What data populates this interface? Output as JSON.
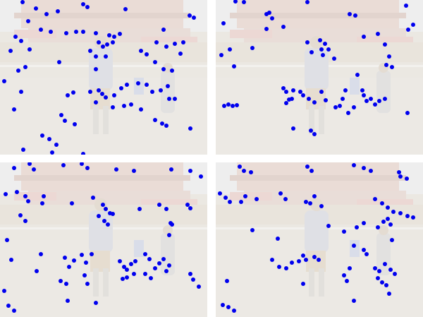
{
  "figure": {
    "background_color": "#ffffff",
    "point_color": "#0000ee",
    "photo_tint": "#ebe8e2",
    "panels": [
      {
        "id": "panel-top-left",
        "points": [
          [
            32,
            3
          ],
          [
            51,
            12
          ],
          [
            66,
            20
          ],
          [
            82,
            16
          ],
          [
            118,
            6
          ],
          [
            124,
            10
          ],
          [
            178,
            13
          ],
          [
            269,
            22
          ],
          [
            275,
            25
          ],
          [
            40,
            30
          ],
          [
            58,
            42
          ],
          [
            72,
            45
          ],
          [
            94,
            47
          ],
          [
            108,
            45
          ],
          [
            118,
            45
          ],
          [
            136,
            47
          ],
          [
            155,
            50
          ],
          [
            162,
            52
          ],
          [
            170,
            48
          ],
          [
            232,
            42
          ],
          [
            22,
            52
          ],
          [
            30,
            58
          ],
          [
            42,
            70
          ],
          [
            15,
            72
          ],
          [
            140,
            60
          ],
          [
            146,
            66
          ],
          [
            152,
            63
          ],
          [
            160,
            60
          ],
          [
            136,
            80
          ],
          [
            150,
            80
          ],
          [
            128,
            72
          ],
          [
            200,
            72
          ],
          [
            208,
            77
          ],
          [
            222,
            60
          ],
          [
            236,
            66
          ],
          [
            248,
            62
          ],
          [
            260,
            60
          ],
          [
            256,
            76
          ],
          [
            36,
            95
          ],
          [
            26,
            100
          ],
          [
            84,
            88
          ],
          [
            220,
            88
          ],
          [
            232,
            98
          ],
          [
            244,
            100
          ],
          [
            136,
            98
          ],
          [
            6,
            115
          ],
          [
            20,
            155
          ],
          [
            30,
            130
          ],
          [
            96,
            135
          ],
          [
            104,
            131
          ],
          [
            128,
            130
          ],
          [
            140,
            128
          ],
          [
            145,
            133
          ],
          [
            150,
            138
          ],
          [
            162,
            135
          ],
          [
            172,
            125
          ],
          [
            180,
            120
          ],
          [
            196,
            118
          ],
          [
            208,
            120
          ],
          [
            216,
            130
          ],
          [
            228,
            128
          ],
          [
            238,
            122
          ],
          [
            240,
            140
          ],
          [
            248,
            140
          ],
          [
            136,
            145
          ],
          [
            160,
            152
          ],
          [
            176,
            150
          ],
          [
            186,
            148
          ],
          [
            200,
            155
          ],
          [
            220,
            170
          ],
          [
            230,
            175
          ],
          [
            236,
            178
          ],
          [
            87,
            163
          ],
          [
            92,
            171
          ],
          [
            106,
            176
          ],
          [
            270,
            182
          ],
          [
            60,
            192
          ],
          [
            70,
            197
          ],
          [
            80,
            205
          ],
          [
            33,
            212
          ],
          [
            74,
            216
          ],
          [
            118,
            218
          ]
        ]
      },
      {
        "id": "panel-top-right",
        "points": [
          [
            28,
            2
          ],
          [
            40,
            3
          ],
          [
            130,
            3
          ],
          [
            190,
            20
          ],
          [
            198,
            22
          ],
          [
            270,
            8
          ],
          [
            273,
            42
          ],
          [
            280,
            35
          ],
          [
            72,
            20
          ],
          [
            76,
            18
          ],
          [
            80,
            26
          ],
          [
            11,
            33
          ],
          [
            72,
            41
          ],
          [
            96,
            38
          ],
          [
            130,
            60
          ],
          [
            136,
            74
          ],
          [
            148,
            57
          ],
          [
            150,
            70
          ],
          [
            155,
            62
          ],
          [
            160,
            70
          ],
          [
            152,
            78
          ],
          [
            168,
            83
          ],
          [
            210,
            52
          ],
          [
            230,
            48
          ],
          [
            240,
            63
          ],
          [
            246,
            80
          ],
          [
            250,
            95
          ],
          [
            242,
            92
          ],
          [
            52,
            68
          ],
          [
            20,
            70
          ],
          [
            8,
            78
          ],
          [
            26,
            94
          ],
          [
            96,
            125
          ],
          [
            100,
            130
          ],
          [
            110,
            128
          ],
          [
            120,
            130
          ],
          [
            124,
            135
          ],
          [
            132,
            140
          ],
          [
            140,
            145
          ],
          [
            150,
            130
          ],
          [
            170,
            152
          ],
          [
            176,
            150
          ],
          [
            188,
            160
          ],
          [
            196,
            152
          ],
          [
            201,
            106
          ],
          [
            208,
            128
          ],
          [
            210,
            135
          ],
          [
            214,
            143
          ],
          [
            220,
            140
          ],
          [
            226,
            148
          ],
          [
            232,
            143
          ],
          [
            240,
            140
          ],
          [
            184,
            128
          ],
          [
            180,
            140
          ],
          [
            12,
            150
          ],
          [
            18,
            148
          ],
          [
            24,
            150
          ],
          [
            30,
            149
          ],
          [
            100,
            146
          ],
          [
            104,
            141
          ],
          [
            108,
            140
          ],
          [
            135,
            185
          ],
          [
            140,
            190
          ],
          [
            110,
            182
          ],
          [
            156,
            142
          ],
          [
            272,
            160
          ]
        ]
      },
      {
        "id": "panel-bottom-left",
        "points": [
          [
            20,
            8
          ],
          [
            42,
            2
          ],
          [
            48,
            10
          ],
          [
            90,
            4
          ],
          [
            116,
            2
          ],
          [
            124,
            8
          ],
          [
            165,
            10
          ],
          [
            190,
            12
          ],
          [
            243,
            10
          ],
          [
            270,
            12
          ],
          [
            285,
            20
          ],
          [
            8,
            45
          ],
          [
            24,
            42
          ],
          [
            36,
            48
          ],
          [
            40,
            55
          ],
          [
            62,
            48
          ],
          [
            102,
            58
          ],
          [
            132,
            50
          ],
          [
            146,
            60
          ],
          [
            150,
            66
          ],
          [
            156,
            72
          ],
          [
            140,
            76
          ],
          [
            148,
            83
          ],
          [
            153,
            88
          ],
          [
            160,
            73
          ],
          [
            198,
            66
          ],
          [
            226,
            60
          ],
          [
            236,
            66
          ],
          [
            266,
            60
          ],
          [
            270,
            65
          ],
          [
            29,
            75
          ],
          [
            36,
            83
          ],
          [
            60,
            58
          ],
          [
            10,
            110
          ],
          [
            16,
            138
          ],
          [
            58,
            130
          ],
          [
            92,
            135
          ],
          [
            98,
            148
          ],
          [
            105,
            139
          ],
          [
            116,
            131
          ],
          [
            122,
            142
          ],
          [
            130,
            130
          ],
          [
            170,
            140
          ],
          [
            176,
            148
          ],
          [
            180,
            152
          ],
          [
            186,
            144
          ],
          [
            192,
            140
          ],
          [
            206,
            130
          ],
          [
            212,
            137
          ],
          [
            220,
            150
          ],
          [
            226,
            143
          ],
          [
            232,
            137
          ],
          [
            240,
            146
          ],
          [
            236,
            154
          ],
          [
            174,
            165
          ],
          [
            180,
            163
          ],
          [
            190,
            158
          ],
          [
            206,
            158
          ],
          [
            214,
            164
          ],
          [
            120,
            160
          ],
          [
            124,
            172
          ],
          [
            86,
            168
          ],
          [
            94,
            172
          ],
          [
            52,
            154
          ],
          [
            6,
            182
          ],
          [
            12,
            203
          ],
          [
            20,
            210
          ],
          [
            96,
            196
          ],
          [
            136,
            199
          ],
          [
            270,
            158
          ],
          [
            274,
            166
          ],
          [
            282,
            176
          ],
          [
            240,
            103
          ],
          [
            242,
            86
          ],
          [
            244,
            88
          ]
        ]
      },
      {
        "id": "panel-bottom-right",
        "points": [
          [
            34,
            6
          ],
          [
            40,
            12
          ],
          [
            50,
            14
          ],
          [
            130,
            6
          ],
          [
            136,
            12
          ],
          [
            196,
            4
          ],
          [
            210,
            8
          ],
          [
            220,
            12
          ],
          [
            260,
            14
          ],
          [
            262,
            20
          ],
          [
            271,
            23
          ],
          [
            6,
            44
          ],
          [
            14,
            50
          ],
          [
            20,
            56
          ],
          [
            36,
            56
          ],
          [
            42,
            48
          ],
          [
            58,
            52
          ],
          [
            92,
            44
          ],
          [
            99,
            52
          ],
          [
            128,
            56
          ],
          [
            134,
            58
          ],
          [
            140,
            48
          ],
          [
            150,
            62
          ],
          [
            226,
            52
          ],
          [
            236,
            58
          ],
          [
            244,
            64
          ],
          [
            252,
            70
          ],
          [
            262,
            72
          ],
          [
            272,
            76
          ],
          [
            280,
            78
          ],
          [
            160,
            90
          ],
          [
            182,
            98
          ],
          [
            200,
            92
          ],
          [
            210,
            86
          ],
          [
            230,
            92
          ],
          [
            238,
            84
          ],
          [
            244,
            80
          ],
          [
            248,
            88
          ],
          [
            250,
            110
          ],
          [
            52,
            96
          ],
          [
            88,
            108
          ],
          [
            80,
            138
          ],
          [
            90,
            148
          ],
          [
            100,
            150
          ],
          [
            108,
            142
          ],
          [
            118,
            140
          ],
          [
            124,
            132
          ],
          [
            128,
            138
          ],
          [
            140,
            134
          ],
          [
            146,
            138
          ],
          [
            196,
            118
          ],
          [
            210,
            124
          ],
          [
            214,
            130
          ],
          [
            226,
            150
          ],
          [
            232,
            154
          ],
          [
            240,
            144
          ],
          [
            248,
            152
          ],
          [
            254,
            158
          ],
          [
            230,
            164
          ],
          [
            236,
            170
          ],
          [
            242,
            174
          ],
          [
            182,
            160
          ],
          [
            186,
            168
          ],
          [
            190,
            150
          ],
          [
            124,
            172
          ],
          [
            16,
            168
          ],
          [
            10,
            202
          ],
          [
            18,
            205
          ],
          [
            26,
            210
          ],
          [
            196,
            196
          ],
          [
            246,
            186
          ]
        ]
      }
    ]
  }
}
